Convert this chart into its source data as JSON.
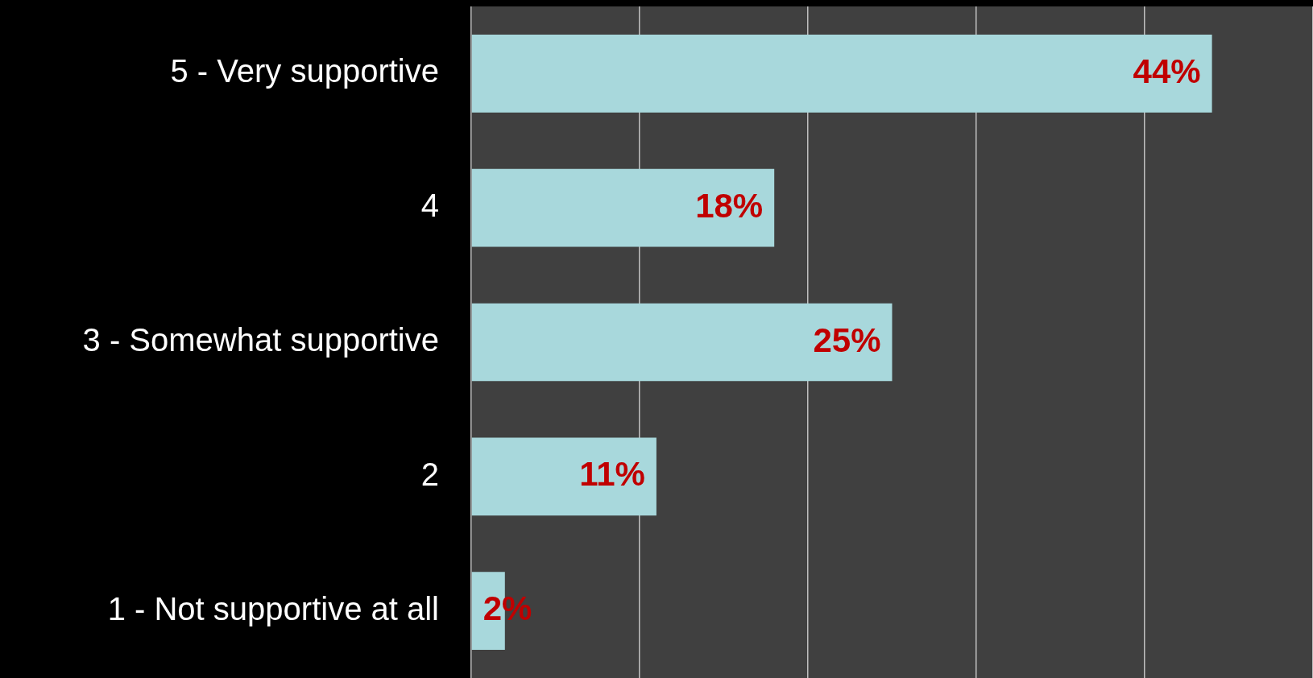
{
  "chart_data": {
    "type": "bar",
    "orientation": "horizontal",
    "categories": [
      "5 - Very supportive",
      "4",
      "3 - Somewhat supportive",
      "2",
      "1 - Not supportive at all"
    ],
    "values": [
      44,
      18,
      25,
      11,
      2
    ],
    "color": "#a8d8dc",
    "value_labels": [
      "44%",
      "18%",
      "25%",
      "11%",
      "2%"
    ],
    "xlim": [
      0,
      50
    ],
    "xticks": [
      0,
      10,
      20,
      30,
      40,
      50
    ],
    "tick_labels": "y",
    "grid": "x",
    "legend": false
  }
}
